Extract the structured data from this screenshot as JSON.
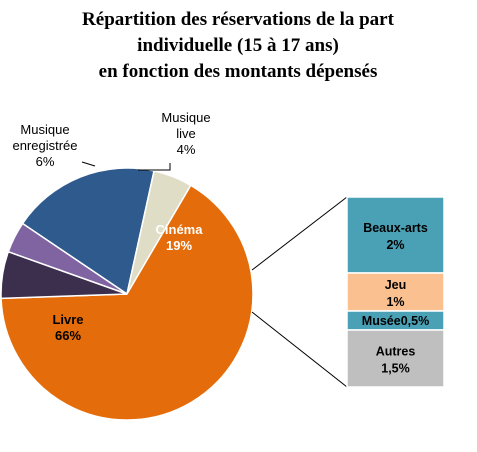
{
  "chart_data": {
    "type": "pie",
    "title": [
      "Répartition des réservations de la part",
      "individuelle (15 à 17 ans)",
      "en fonction des montants dépensés"
    ],
    "slices": [
      {
        "key": "cinema",
        "label": "Cinéma",
        "value_label": "19%",
        "value": 19,
        "color": "#2e5a8e",
        "label_color": "#ffffff"
      },
      {
        "key": "autres-group",
        "label": "",
        "value_label": "",
        "value": 5,
        "color": "#e0ddc6",
        "label_color": "#000000"
      },
      {
        "key": "livre",
        "label": "Livre",
        "value_label": "66%",
        "value": 66,
        "color": "#e46c0a",
        "label_color": "#000000"
      },
      {
        "key": "musique-enregistree",
        "label": "Musique enregistrée",
        "label_lines": [
          "Musique",
          "enregistrée"
        ],
        "value_label": "6%",
        "value": 6,
        "color": "#3c2f4e",
        "label_color": "#000000"
      },
      {
        "key": "musique-live",
        "label": "Musique live",
        "label_lines": [
          "Musique",
          "live"
        ],
        "value_label": "4%",
        "value": 4,
        "color": "#8064a2",
        "label_color": "#000000"
      }
    ],
    "breakdown": {
      "of_slice": "autres-group",
      "segments": [
        {
          "key": "beaux-arts",
          "label": "Beaux-arts",
          "value_label": "2%",
          "value": 2,
          "color": "#4aa0b5"
        },
        {
          "key": "jeu",
          "label": "Jeu",
          "value_label": "1%",
          "value": 1,
          "color": "#fac090"
        },
        {
          "key": "musee",
          "label": "Musée",
          "value_label": "0,5%",
          "value": 0.5,
          "color": "#4aa0b5"
        },
        {
          "key": "autres",
          "label": "Autres",
          "value_label": "1,5%",
          "value": 1.5,
          "color": "#bfbfbf"
        }
      ]
    },
    "legend": "none"
  }
}
